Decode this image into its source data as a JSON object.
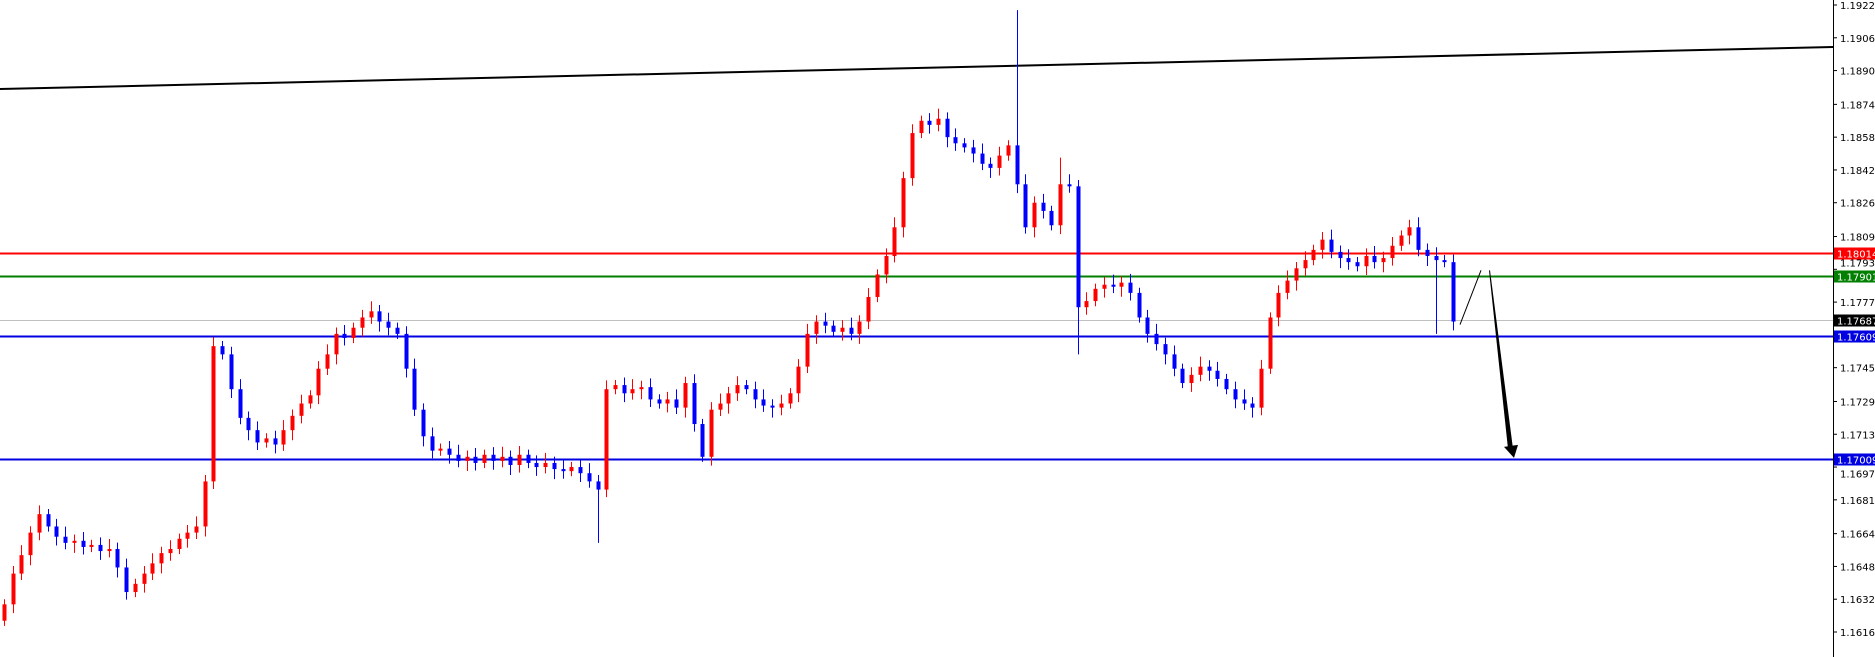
{
  "chart_data": {
    "type": "candlestick",
    "title": "",
    "xlabel": "",
    "ylabel": "",
    "ylim": [
      1.1608,
      1.1925
    ],
    "grid": false,
    "y_ticks": [
      "1.19225",
      "1.19065",
      "1.18905",
      "1.18740",
      "1.18580",
      "1.18420",
      "1.18260",
      "1.18095",
      "1.17935",
      "1.17775",
      "1.17455",
      "1.17290",
      "1.17130",
      "1.16970",
      "1.16810",
      "1.16645",
      "1.16485",
      "1.16325",
      "1.16165"
    ],
    "colors": {
      "bull": "#ff0000",
      "bear": "#0000ff",
      "background": "#ffffff",
      "axis": "#000000"
    },
    "first_open": 1.1622,
    "closes": [
      1.163,
      1.1645,
      1.1654,
      1.1665,
      1.1674,
      1.1668,
      1.1663,
      1.166,
      1.1661,
      1.1658,
      1.1659,
      1.1656,
      1.1657,
      1.1648,
      1.1636,
      1.164,
      1.1645,
      1.165,
      1.1655,
      1.1657,
      1.1662,
      1.1665,
      1.1668,
      1.169,
      1.1756,
      1.1752,
      1.1735,
      1.1721,
      1.1715,
      1.1709,
      1.1711,
      1.1708,
      1.1715,
      1.1722,
      1.1728,
      1.1732,
      1.1745,
      1.1752,
      1.1762,
      1.176,
      1.1765,
      1.177,
      1.1773,
      1.1768,
      1.1765,
      1.1762,
      1.1745,
      1.1725,
      1.1712,
      1.1705,
      1.1706,
      1.1703,
      1.17,
      1.1702,
      1.1699,
      1.1703,
      1.17,
      1.1702,
      1.1698,
      1.1703,
      1.1699,
      1.1697,
      1.1699,
      1.1696,
      1.1695,
      1.1697,
      1.1694,
      1.169,
      1.1686,
      1.1735,
      1.1737,
      1.1733,
      1.1735,
      1.1736,
      1.173,
      1.1728,
      1.173,
      1.1726,
      1.1738,
      1.1718,
      1.1702,
      1.1725,
      1.1728,
      1.1733,
      1.1737,
      1.1735,
      1.173,
      1.1727,
      1.1726,
      1.1728,
      1.1733,
      1.1746,
      1.1762,
      1.1768,
      1.1766,
      1.1763,
      1.1765,
      1.1762,
      1.1768,
      1.178,
      1.1791,
      1.18,
      1.1814,
      1.1838,
      1.186,
      1.1866,
      1.1864,
      1.1867,
      1.1858,
      1.1855,
      1.1853,
      1.185,
      1.1845,
      1.1843,
      1.1849,
      1.1854,
      1.1835,
      1.1814,
      1.1826,
      1.1822,
      1.1815,
      1.1835,
      1.1834,
      1.1775,
      1.1778,
      1.1784,
      1.1786,
      1.1785,
      1.1787,
      1.1782,
      1.177,
      1.1762,
      1.1757,
      1.1752,
      1.1745,
      1.1738,
      1.1742,
      1.1746,
      1.1744,
      1.174,
      1.1735,
      1.173,
      1.1728,
      1.1726,
      1.1745,
      1.177,
      1.1782,
      1.1788,
      1.1794,
      1.1798,
      1.1803,
      1.1808,
      1.1802,
      1.1799,
      1.1797,
      1.1795,
      1.18,
      1.1797,
      1.1799,
      1.1805,
      1.181,
      1.1814,
      1.1803,
      1.18,
      1.1798,
      1.1797,
      1.1768
    ],
    "wick_extremes": [
      {
        "index": 68,
        "low": 1.166
      },
      {
        "index": 116,
        "high": 1.192
      },
      {
        "index": 123,
        "low": 1.1752
      },
      {
        "index": 121,
        "high": 1.1848
      },
      {
        "index": 164,
        "low": 1.1762
      }
    ],
    "levels": [
      {
        "price": 1.18014,
        "label": "1.18014",
        "color": "#ff0000"
      },
      {
        "price": 1.17901,
        "label": "1.17901",
        "color": "#007f00"
      },
      {
        "price": 1.17687,
        "label": "1.17687",
        "color": "#000000",
        "line_color": "#c0c0c0"
      },
      {
        "price": 1.17609,
        "label": "1.17609",
        "color": "#0000e0"
      },
      {
        "price": 1.17009,
        "label": "1.17009",
        "color": "#0000e0"
      }
    ],
    "trendline": {
      "start_price": 1.18815,
      "end_price": 1.1902,
      "color": "#000000"
    },
    "projection": {
      "from": 1.1768,
      "peak": 1.1793,
      "target": 1.17,
      "color": "#000000"
    }
  }
}
